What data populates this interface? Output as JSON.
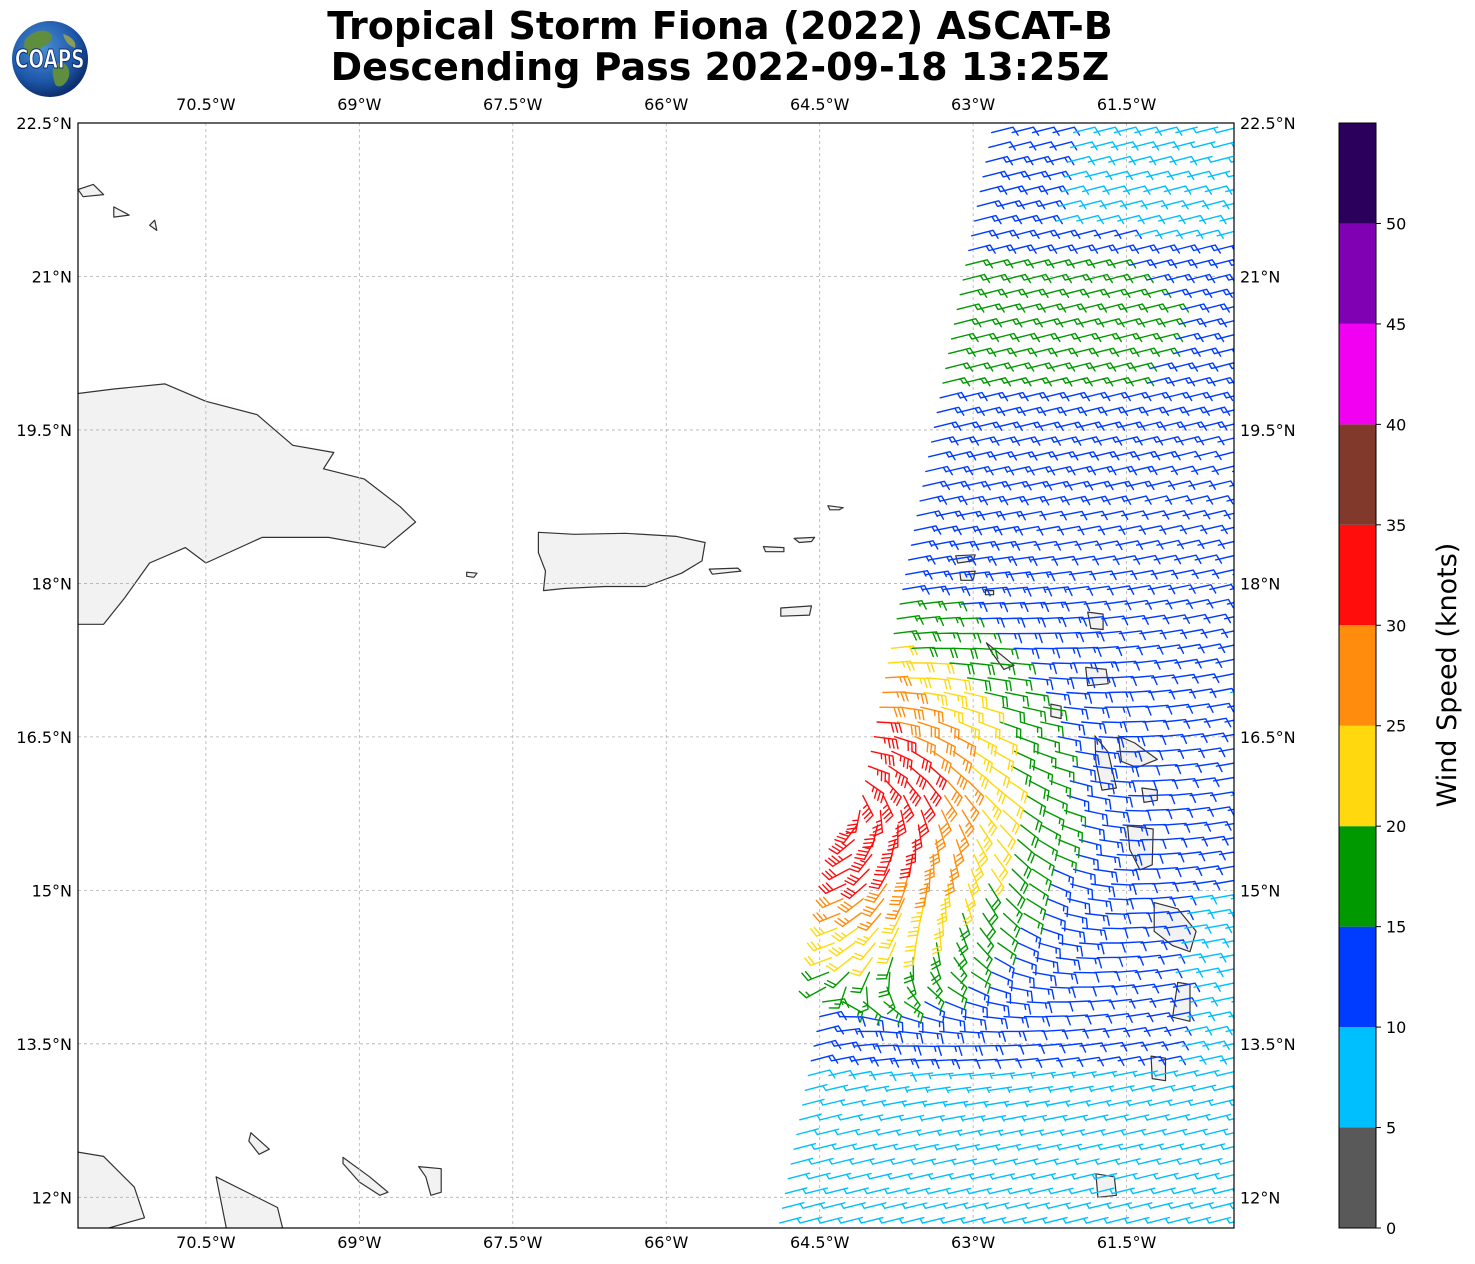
{
  "title": {
    "line1": "Tropical Storm Fiona (2022) ASCAT-B",
    "line2": "Descending Pass 2022-09-18 13:25Z"
  },
  "logo": {
    "text": "COAPS",
    "icon": "globe-icon"
  },
  "map": {
    "lon_range": [
      -71.75,
      -60.45
    ],
    "lat_range": [
      11.7,
      22.5
    ],
    "lon_ticks": [
      {
        "value": -70.5,
        "label": "70.5°W"
      },
      {
        "value": -69.0,
        "label": "69°W"
      },
      {
        "value": -67.5,
        "label": "67.5°W"
      },
      {
        "value": -66.0,
        "label": "66°W"
      },
      {
        "value": -64.5,
        "label": "64.5°W"
      },
      {
        "value": -63.0,
        "label": "63°W"
      },
      {
        "value": -61.5,
        "label": "61.5°W"
      }
    ],
    "lat_ticks": [
      {
        "value": 22.5,
        "label": "22.5°N"
      },
      {
        "value": 21.0,
        "label": "21°N"
      },
      {
        "value": 19.5,
        "label": "19.5°N"
      },
      {
        "value": 18.0,
        "label": "18°N"
      },
      {
        "value": 16.5,
        "label": "16.5°N"
      },
      {
        "value": 15.0,
        "label": "15°N"
      },
      {
        "value": 13.5,
        "label": "13.5°N"
      },
      {
        "value": 12.0,
        "label": "12°N"
      }
    ],
    "grid": "dashed",
    "land_color": "#f2f2f2",
    "coast_color": "#333333",
    "terrain_color": "#777777"
  },
  "chart_data": {
    "type": "wind-barbs",
    "variable": "Wind Speed (knots)",
    "swath": {
      "west_edge": [
        [
          -64.9,
          11.7
        ],
        [
          -62.8,
          22.5
        ]
      ],
      "east_edge": [
        [
          -60.45,
          11.7
        ],
        [
          -60.45,
          22.5
        ]
      ]
    },
    "storm_center": [
      -64.3,
      15.9
    ],
    "colorbar": {
      "label": "Wind Speed (knots)",
      "range": [
        0,
        55
      ],
      "ticks": [
        0,
        5,
        10,
        15,
        20,
        25,
        30,
        35,
        40,
        45,
        50
      ],
      "bins": [
        {
          "from": 0,
          "to": 5,
          "color": "#595959"
        },
        {
          "from": 5,
          "to": 10,
          "color": "#00bfff"
        },
        {
          "from": 10,
          "to": 15,
          "color": "#003cff"
        },
        {
          "from": 15,
          "to": 20,
          "color": "#009900"
        },
        {
          "from": 20,
          "to": 25,
          "color": "#ffd90d"
        },
        {
          "from": 25,
          "to": 30,
          "color": "#ff8c0d"
        },
        {
          "from": 30,
          "to": 35,
          "color": "#ff0d0d"
        },
        {
          "from": 35,
          "to": 40,
          "color": "#80392b"
        },
        {
          "from": 40,
          "to": 45,
          "color": "#f200f2"
        },
        {
          "from": 45,
          "to": 50,
          "color": "#8000b3"
        },
        {
          "from": 50,
          "to": 55,
          "color": "#2b005c"
        }
      ]
    }
  }
}
